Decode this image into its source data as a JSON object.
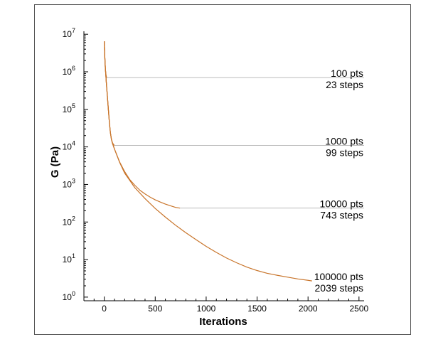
{
  "chart_data": {
    "type": "line",
    "title": "",
    "xlabel": "Iterations",
    "ylabel": "G (Pa)",
    "xlim": [
      -200,
      2550
    ],
    "ylim": [
      0.8,
      12000000
    ],
    "yscale": "log",
    "grid": false,
    "xticks": [
      0,
      500,
      1000,
      1500,
      2000,
      2500
    ],
    "yticks": [
      {
        "value": 1,
        "base": "10",
        "exp": "0"
      },
      {
        "value": 10,
        "base": "10",
        "exp": "1"
      },
      {
        "value": 100,
        "base": "10",
        "exp": "2"
      },
      {
        "value": 1000,
        "base": "10",
        "exp": "3"
      },
      {
        "value": 10000,
        "base": "10",
        "exp": "4"
      },
      {
        "value": 100000,
        "base": "10",
        "exp": "5"
      },
      {
        "value": 1000000,
        "base": "10",
        "exp": "6"
      },
      {
        "value": 10000000,
        "base": "10",
        "exp": "7"
      }
    ],
    "line_color": "#c8742a",
    "plateau_color": "#bbbbbb",
    "series": [
      {
        "x": [
          0,
          5,
          10,
          15,
          20,
          23
        ],
        "y": [
          6500000,
          2500000,
          1300000,
          900000,
          750000,
          700000
        ]
      },
      {
        "x": [
          0,
          5,
          10,
          20,
          30,
          40,
          50,
          60,
          70,
          80,
          90,
          99
        ],
        "y": [
          6500000,
          2500000,
          1300000,
          520000,
          230000,
          100000,
          45000,
          24000,
          16000,
          13000,
          11700,
          11000
        ]
      },
      {
        "x": [
          0,
          5,
          10,
          20,
          30,
          40,
          50,
          60,
          70,
          80,
          90,
          100,
          150,
          200,
          250,
          300,
          350,
          400,
          450,
          500,
          550,
          600,
          650,
          700,
          743
        ],
        "y": [
          6500000,
          2500000,
          1300000,
          520000,
          230000,
          100000,
          45000,
          24000,
          16000,
          12500,
          10500,
          8800,
          4000,
          2200,
          1350,
          950,
          700,
          560,
          460,
          390,
          340,
          300,
          270,
          245,
          235
        ]
      },
      {
        "x": [
          0,
          5,
          10,
          20,
          30,
          40,
          50,
          60,
          70,
          80,
          90,
          100,
          150,
          200,
          300,
          400,
          500,
          600,
          700,
          800,
          900,
          1000,
          1100,
          1200,
          1300,
          1400,
          1500,
          1600,
          1700,
          1800,
          1900,
          2000,
          2039
        ],
        "y": [
          6500000,
          2500000,
          1300000,
          520000,
          230000,
          100000,
          45000,
          24000,
          16000,
          12500,
          10500,
          8800,
          3900,
          2000,
          820,
          420,
          230,
          135,
          82,
          52,
          34,
          22.5,
          15.5,
          11,
          8.2,
          6.3,
          5.1,
          4.3,
          3.8,
          3.4,
          3.05,
          2.8,
          2.7
        ]
      }
    ],
    "plateaus": [
      {
        "x_start": 23,
        "x_end": 2550,
        "y": 700000
      },
      {
        "x_start": 99,
        "x_end": 2550,
        "y": 11000
      },
      {
        "x_start": 743,
        "x_end": 2550,
        "y": 235
      }
    ],
    "annotations": [
      {
        "line1": "100 pts",
        "line2": "23 steps",
        "y": 700000
      },
      {
        "line1": "1000 pts",
        "line2": "99 steps",
        "y": 11000
      },
      {
        "line1": "10000 pts",
        "line2": "743 steps",
        "y": 235
      },
      {
        "line1": "100000 pts",
        "line2": "2039 steps",
        "y": 2.7
      }
    ]
  }
}
